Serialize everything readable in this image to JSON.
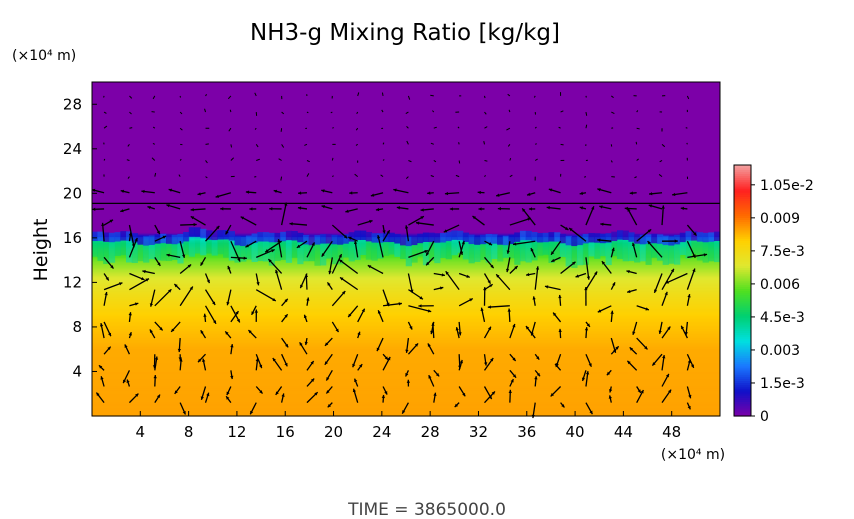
{
  "chart_data": {
    "type": "heatmap",
    "title": "NH3-g Mixing Ratio [kg/kg]",
    "xlabel": "",
    "ylabel": "Height",
    "x_unit": "(×10⁴ m)",
    "y_unit": "(×10⁴ m)",
    "xlim": [
      0,
      52
    ],
    "ylim": [
      0,
      30
    ],
    "x_ticks": [
      "4",
      "8",
      "12",
      "16",
      "20",
      "24",
      "28",
      "32",
      "36",
      "40",
      "44",
      "48"
    ],
    "y_ticks": [
      "4",
      "8",
      "12",
      "16",
      "20",
      "24",
      "28"
    ],
    "colorbar": {
      "min": 0,
      "max": 0.0114,
      "labels": [
        "0",
        "1.5e-3",
        "0.003",
        "4.5e-3",
        "0.006",
        "7.5e-3",
        "0.009",
        "1.05e-2"
      ],
      "label_values": [
        0,
        0.0015,
        0.003,
        0.0045,
        0.006,
        0.0075,
        0.009,
        0.0105
      ],
      "colors": [
        "#7c00a8",
        "#1010c8",
        "#1a78ff",
        "#00e0e0",
        "#00d070",
        "#50e020",
        "#e0e830",
        "#ffd000",
        "#ff6a00",
        "#ff2020",
        "#f4a0a0"
      ]
    },
    "profile": {
      "height": [
        0,
        6,
        9,
        11,
        12.5,
        14,
        15,
        15.6,
        16,
        16.2,
        16.5,
        30
      ],
      "value": [
        0.0085,
        0.0084,
        0.008,
        0.0074,
        0.0068,
        0.006,
        0.0052,
        0.0045,
        0.0035,
        0.001,
        0,
        0
      ]
    },
    "time_label": "TIME = 3865000.0"
  }
}
